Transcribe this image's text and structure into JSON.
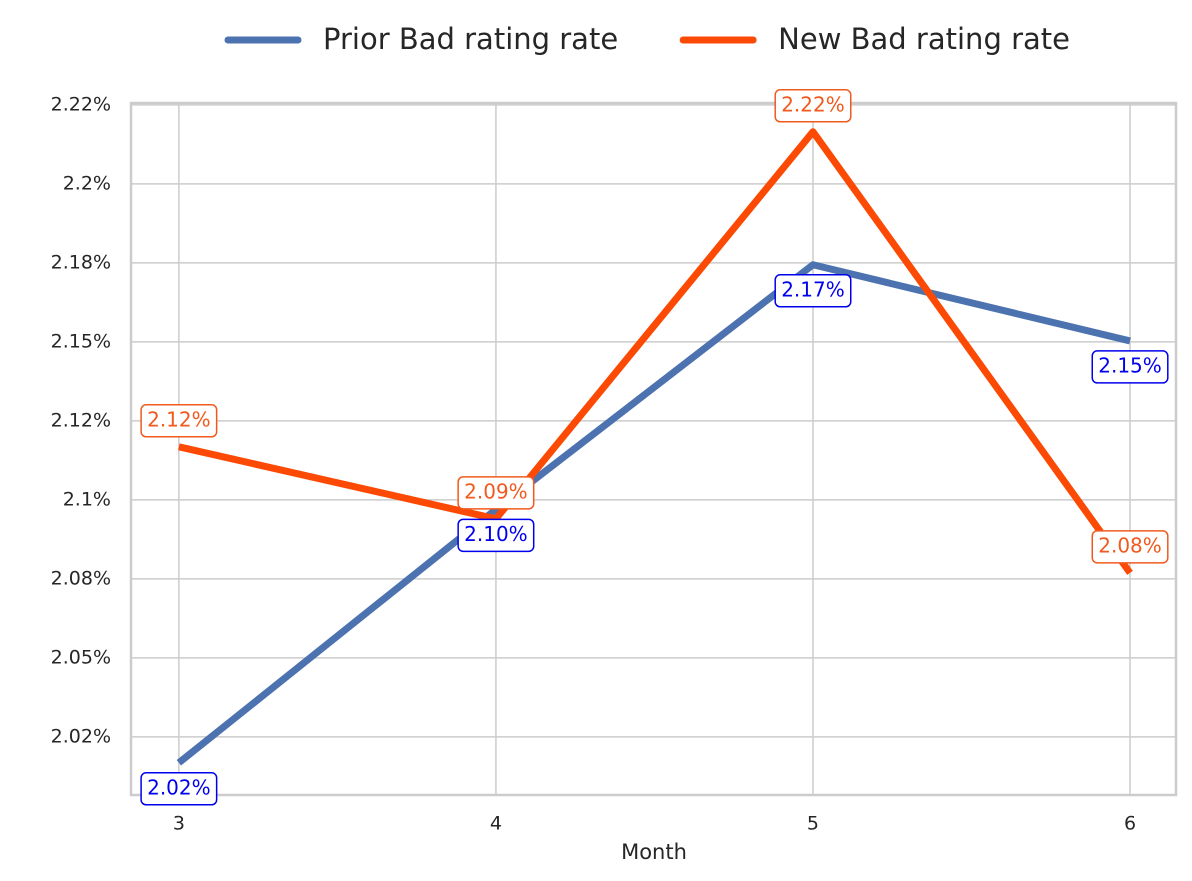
{
  "chart_data": {
    "type": "line",
    "x_label": "Month",
    "x": [
      3,
      4,
      5,
      6
    ],
    "xlim": [
      2.849,
      6.145
    ],
    "xticks": [
      3,
      4,
      5,
      6
    ],
    "ylim": [
      2.0066,
      2.2256
    ],
    "yticks": [
      {
        "value": 2.025,
        "label": "2.02%"
      },
      {
        "value": 2.05,
        "label": "2.05%"
      },
      {
        "value": 2.075,
        "label": "2.08%"
      },
      {
        "value": 2.1,
        "label": "2.1%"
      },
      {
        "value": 2.125,
        "label": "2.12%"
      },
      {
        "value": 2.15,
        "label": "2.15%"
      },
      {
        "value": 2.175,
        "label": "2.18%"
      },
      {
        "value": 2.2,
        "label": "2.2%"
      },
      {
        "value": 2.225,
        "label": "2.22%"
      }
    ],
    "grid": true,
    "legend": "top",
    "series": [
      {
        "name": "Prior Bad rating rate",
        "color": "#4c72b0",
        "label_color": "#0000ee",
        "label_side": "below",
        "values": [
          2.0168,
          2.097,
          2.1744,
          2.1503
        ],
        "value_labels": [
          "2.02%",
          "2.10%",
          "2.17%",
          "2.15%"
        ]
      },
      {
        "name": "New Bad rating rate",
        "color": "#fc4a05",
        "label_color": "#f05a1e",
        "label_side": "above",
        "values": [
          2.1168,
          2.094,
          2.2165,
          2.0769
        ],
        "value_labels": [
          "2.12%",
          "2.09%",
          "2.22%",
          "2.08%"
        ]
      }
    ]
  }
}
